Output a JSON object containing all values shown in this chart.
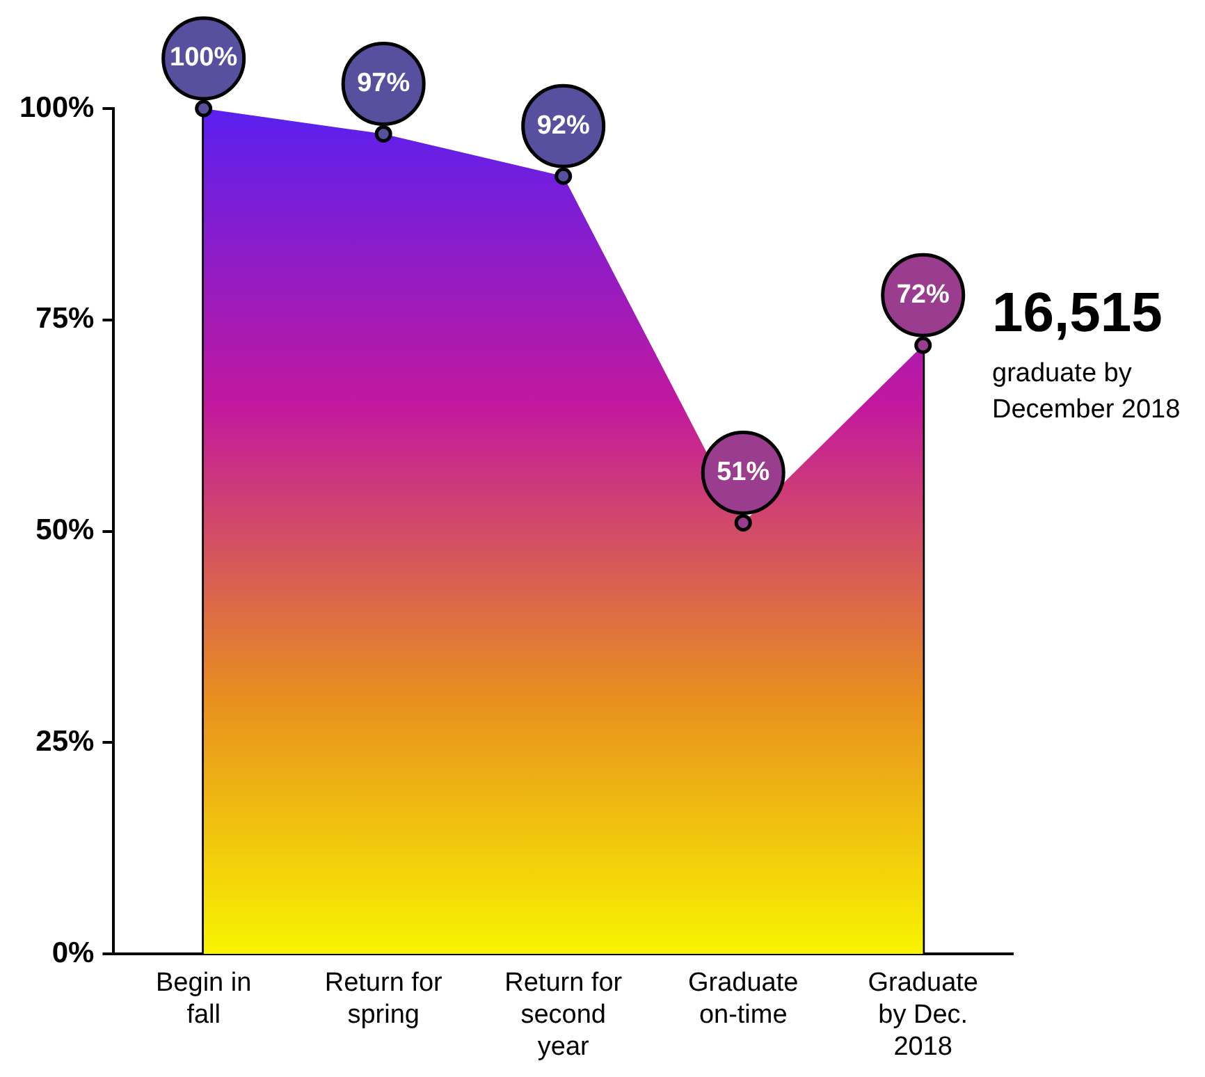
{
  "chart_data": {
    "type": "area",
    "categories": [
      "Begin in fall",
      "Return for spring",
      "Return for second year",
      "Graduate on-time",
      "Graduate by Dec. 2018"
    ],
    "series": [
      {
        "color": "#5a20f0",
        "colors": [
          "#56509e",
          "#56509e",
          "#56509e",
          "#9b3d8f",
          "#9b3d8f"
        ],
        "values": [
          100,
          97,
          92,
          51,
          72
        ],
        "value_labels": [
          "100%",
          "97%",
          "92%",
          "51%",
          "72%"
        ]
      }
    ],
    "ylim": [
      0,
      100
    ],
    "yticks": [
      {
        "value": 0,
        "label": "0%"
      },
      {
        "value": 25,
        "label": "25%"
      },
      {
        "value": 50,
        "label": "50%"
      },
      {
        "value": 75,
        "label": "75%"
      },
      {
        "value": 100,
        "label": "100%"
      }
    ],
    "grid": "x",
    "legend": false,
    "marker": "circle",
    "annotations": [
      "16,515",
      "graduate by December 2018"
    ]
  }
}
